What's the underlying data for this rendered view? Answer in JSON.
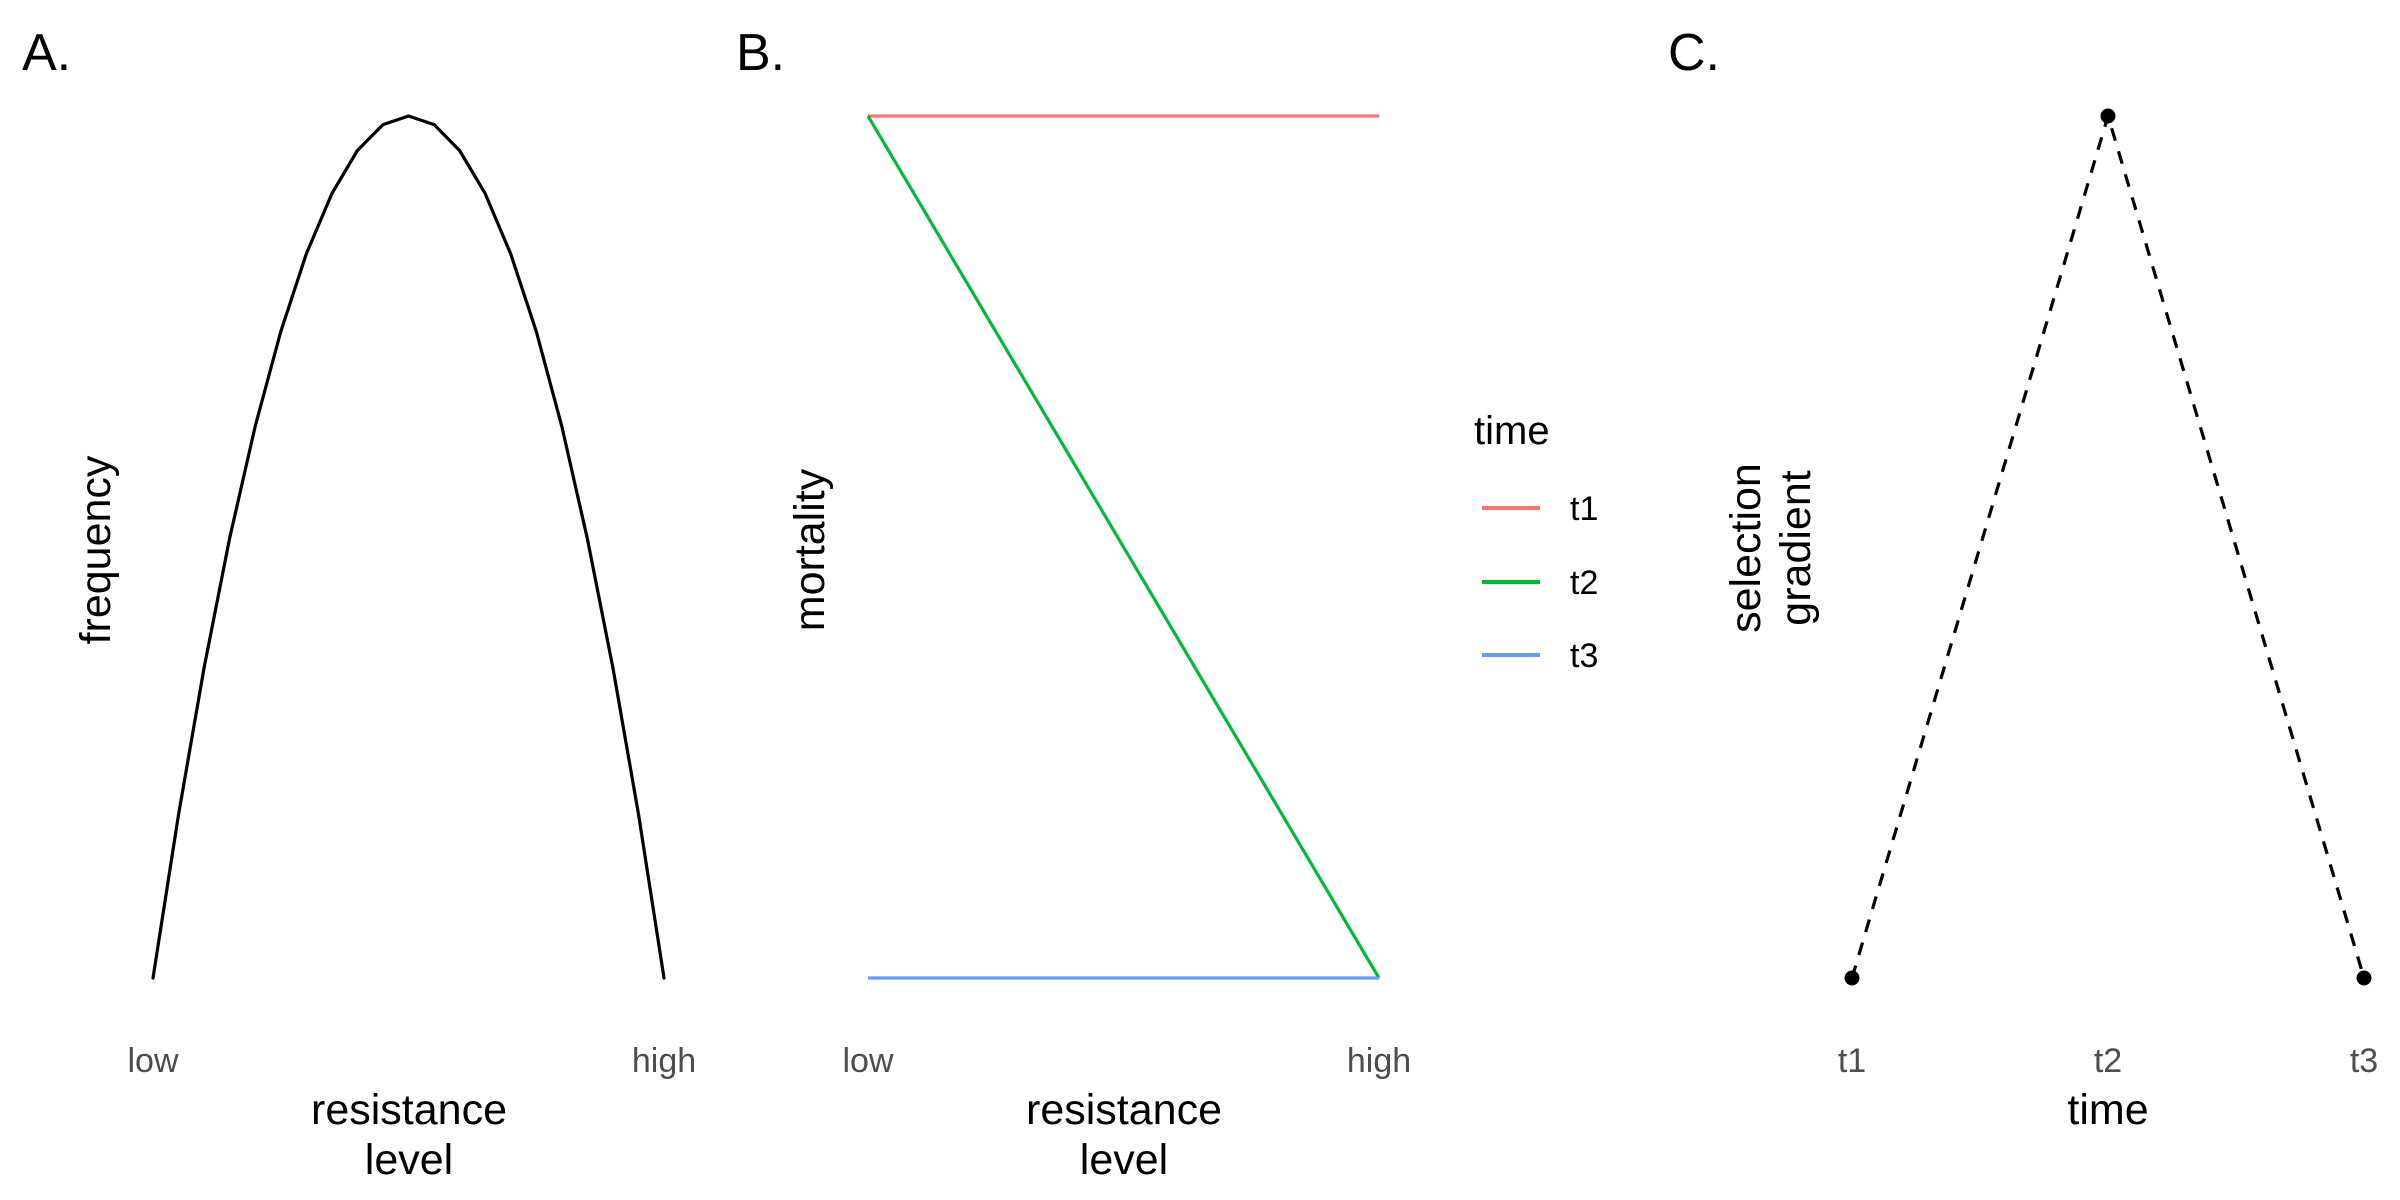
{
  "chart_data": [
    {
      "panel": "A.",
      "type": "line",
      "xlabel": [
        "resistance",
        "level"
      ],
      "ylabel": [
        "frequency"
      ],
      "x_ticks": [
        "low",
        "high"
      ],
      "xlim": [
        0,
        1
      ],
      "ylim": [
        0,
        1
      ],
      "grid": false,
      "series": [
        {
          "x": [
            0,
            0.05,
            0.1,
            0.15,
            0.2,
            0.25,
            0.3,
            0.35,
            0.4,
            0.45,
            0.5,
            0.55,
            0.6,
            0.65,
            0.7,
            0.75,
            0.8,
            0.85,
            0.9,
            0.95,
            1
          ],
          "y": [
            0,
            0.19,
            0.36,
            0.51,
            0.64,
            0.75,
            0.84,
            0.91,
            0.96,
            0.99,
            1,
            0.99,
            0.96,
            0.91,
            0.84,
            0.75,
            0.64,
            0.51,
            0.36,
            0.19,
            0
          ],
          "color": "#000000",
          "dash": "solid"
        }
      ]
    },
    {
      "panel": "B.",
      "type": "line",
      "xlabel": [
        "resistance",
        "level"
      ],
      "ylabel": [
        "mortality"
      ],
      "x_ticks": [
        "low",
        "high"
      ],
      "xlim": [
        0,
        1
      ],
      "ylim": [
        0,
        1
      ],
      "grid": false,
      "legend": {
        "title": "time",
        "position": "right"
      },
      "series": [
        {
          "name": "t1",
          "x": [
            0,
            1
          ],
          "y": [
            1,
            1
          ],
          "color": "#F8766D"
        },
        {
          "name": "t2",
          "x": [
            0,
            1
          ],
          "y": [
            1,
            0
          ],
          "color": "#00BA38"
        },
        {
          "name": "t3",
          "x": [
            0,
            1
          ],
          "y": [
            0,
            0
          ],
          "color": "#619CFF"
        }
      ]
    },
    {
      "panel": "C.",
      "type": "line",
      "xlabel": [
        "time"
      ],
      "ylabel": [
        "selection",
        "gradient"
      ],
      "categories": [
        "t1",
        "t2",
        "t3"
      ],
      "values": [
        0,
        1,
        0
      ],
      "ylim": [
        0,
        1
      ],
      "grid": false,
      "markers": true,
      "dash": "dashed",
      "color": "#000000"
    }
  ]
}
